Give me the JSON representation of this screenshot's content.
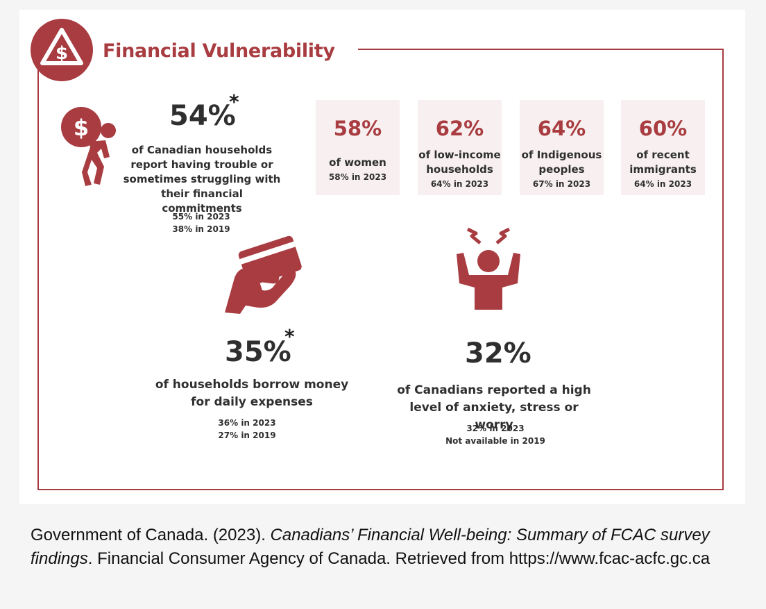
{
  "header": {
    "title": "Financial Vulnerability"
  },
  "stats": {
    "households": {
      "value": "54%",
      "star": "*",
      "desc_lines": [
        "of Canadian households",
        "report having trouble or",
        "sometimes struggling with",
        "their financial commitments"
      ],
      "prev_2023": "55% in 2023",
      "prev_2019": "38% in 2019"
    },
    "borrow": {
      "value": "35%",
      "star": "*",
      "desc_lines": [
        "of households borrow money",
        "for daily expenses"
      ],
      "prev_2023": "36% in 2023",
      "prev_2019": "27% in 2019"
    },
    "anxiety": {
      "value": "32%",
      "desc_lines": [
        "of Canadians reported a high",
        "level of anxiety, stress or worry"
      ],
      "prev_2023": "32% in 2023",
      "prev_2019": "Not available in 2019"
    }
  },
  "groups": [
    {
      "value": "58%",
      "label_lines": [
        "of women"
      ],
      "prev": "58% in 2023"
    },
    {
      "value": "62%",
      "label_lines": [
        "of low-income",
        "households"
      ],
      "prev": "64% in 2023"
    },
    {
      "value": "64%",
      "label_lines": [
        "of Indigenous",
        "peoples"
      ],
      "prev": "67% in 2023"
    },
    {
      "value": "60%",
      "label_lines": [
        "of recent",
        "immigrants"
      ],
      "prev": "64% in 2023"
    }
  ],
  "icons": {
    "badge": "dollar-warning-icon",
    "burden": "person-carrying-money-bag-icon",
    "card": "hand-holding-credit-card-icon",
    "stress": "stressed-person-icon"
  },
  "citation": {
    "author": "Government of Canada. (2023). ",
    "title": "Canadians’ Financial Well-being: Summary of FCAC survey findings",
    "rest": ". Financial Consumer Agency of Canada. Retrieved from https://www.fcac-acfc.gc.ca"
  },
  "colors": {
    "accent": "#a83c40",
    "box_bg": "#f8f0f0",
    "text": "#2f2f2f"
  }
}
